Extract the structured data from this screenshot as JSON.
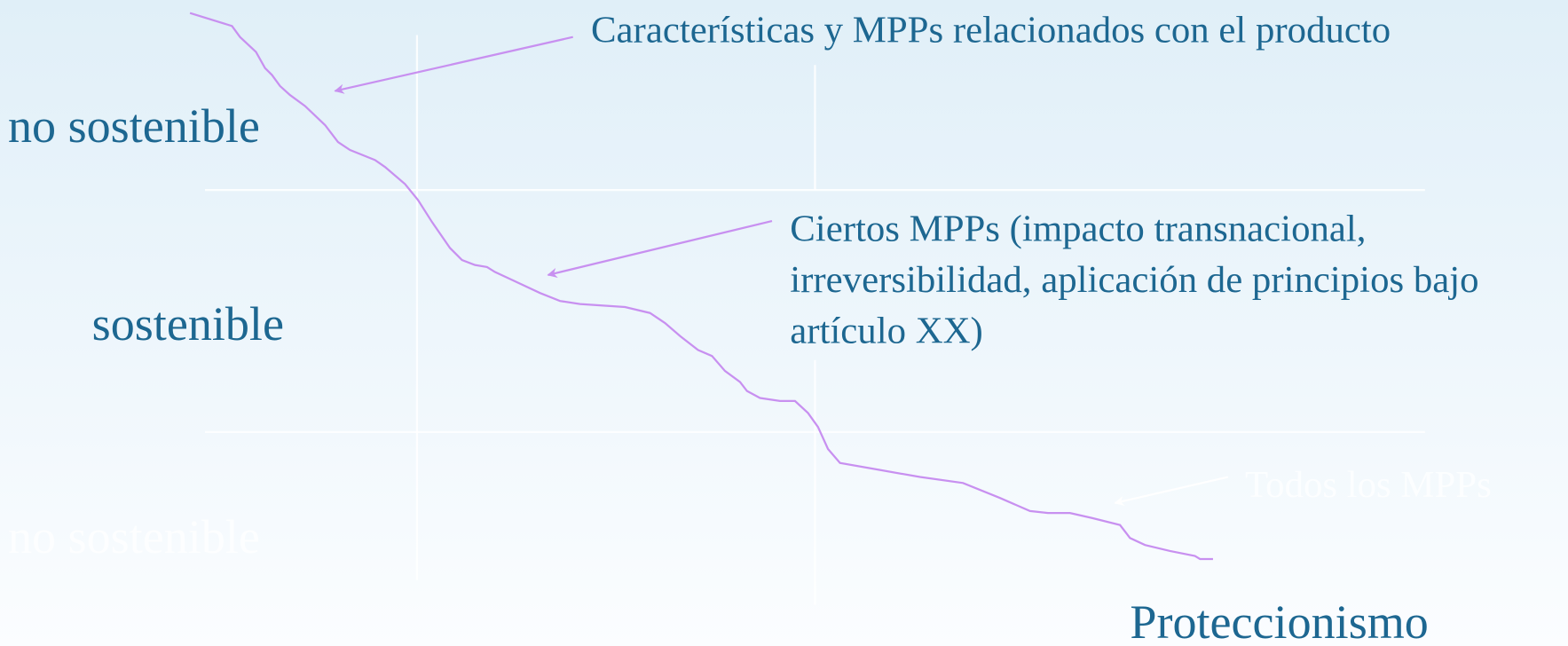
{
  "annotations": {
    "product": "Características y MPPs relacionados con el producto",
    "certain": [
      "Ciertos MPPs (impacto transnacional,",
      "irreversibilidad, aplicación de principios bajo",
      "artículo XX)"
    ],
    "all": "Todos los MPPs"
  },
  "labels": {
    "top": "no sostenible",
    "middle": "sostenible",
    "bottom": "no sostenible",
    "corner": "Proteccionismo"
  }
}
